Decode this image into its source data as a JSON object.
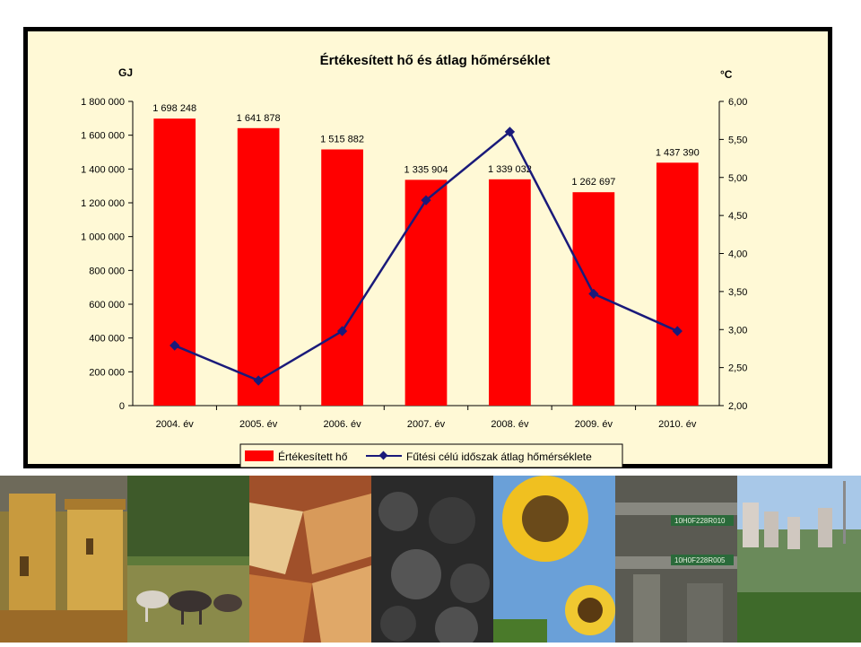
{
  "chart_data": {
    "type": "bar+line",
    "title": "Értékesített hő és átlag hőmérséklet",
    "y_left_unit": "GJ",
    "y_right_unit": "°C",
    "categories": [
      "2004. év",
      "2005. év",
      "2006. év",
      "2007. év",
      "2008. év",
      "2009. év",
      "2010. év"
    ],
    "series": [
      {
        "name": "Értékesített hő",
        "type": "bar",
        "axis": "left",
        "color": "#ff0000",
        "values": [
          1698248,
          1641878,
          1515882,
          1335904,
          1339032,
          1262697,
          1437390
        ],
        "labels": [
          "1 698 248",
          "1 641 878",
          "1 515 882",
          "1 335 904",
          "1 339 032",
          "1 262 697",
          "1 437 390"
        ]
      },
      {
        "name": "Fűtési célú időszak átlag hőmérséklete",
        "type": "line",
        "axis": "right",
        "color": "#1a1a7a",
        "values": [
          2.79,
          2.33,
          2.98,
          4.7,
          5.6,
          3.47,
          2.98
        ]
      }
    ],
    "y_left_lim": [
      0,
      1800000
    ],
    "y_left_ticks": [
      "0",
      "200 000",
      "400 000",
      "600 000",
      "800 000",
      "1 000 000",
      "1 200 000",
      "1 400 000",
      "1 600 000",
      "1 800 000"
    ],
    "y_right_lim": [
      2.0,
      6.0
    ],
    "y_right_ticks": [
      "2,00",
      "2,50",
      "3,00",
      "3,50",
      "4,00",
      "4,50",
      "5,00",
      "5,50",
      "6,00"
    ],
    "grid": false,
    "legend_position": "bottom"
  },
  "photos": {
    "items": [
      "castle",
      "horses",
      "firewood",
      "coal",
      "sunflower",
      "industrial",
      "city"
    ],
    "pipe_labels": [
      "10H0F228R010",
      "10H0F228R005"
    ]
  }
}
